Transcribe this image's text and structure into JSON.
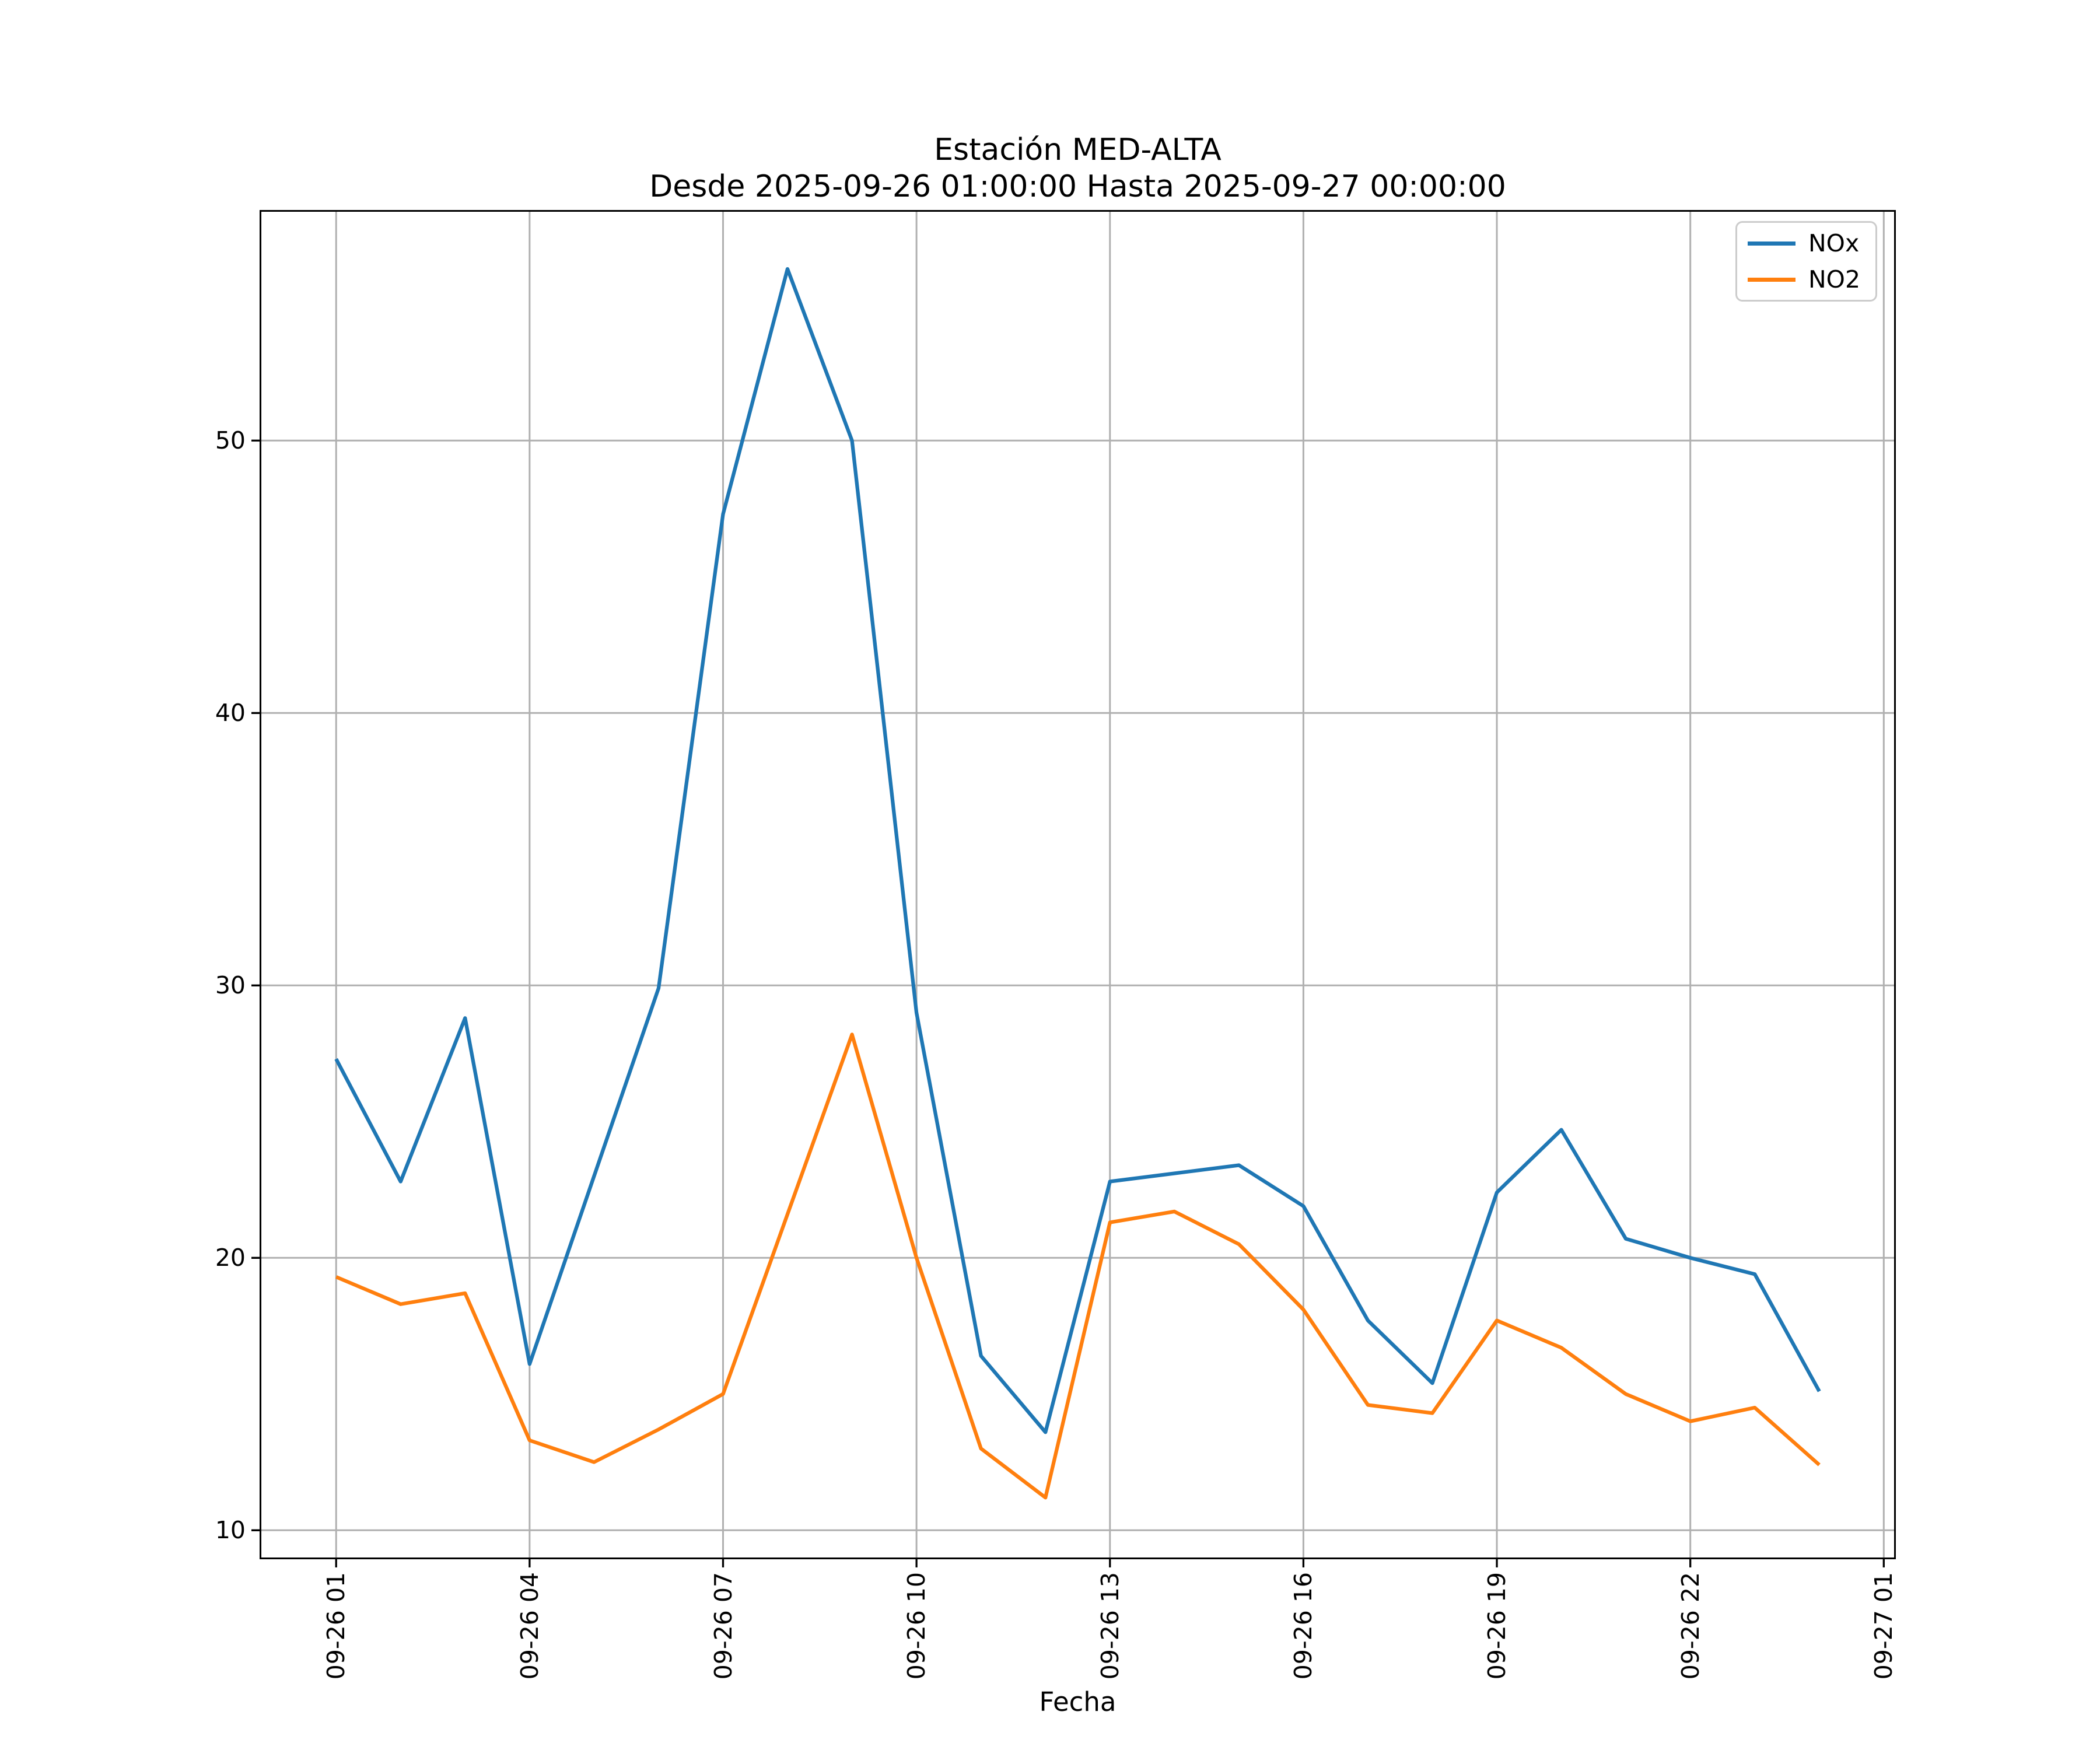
{
  "figure": {
    "title_line1": "Estación MED-ALTA",
    "title_line2": "Desde 2025-09-26 01:00:00 Hasta 2025-09-27 00:00:00",
    "xlabel": "Fecha"
  },
  "colors": {
    "background": "#ffffff",
    "grid": "#b0b0b0",
    "spine": "#000000",
    "tick": "#000000",
    "legend_edge": "#cccccc",
    "nox": "#1f77b4",
    "no2": "#ff7f0e"
  },
  "chart_data": {
    "type": "line",
    "title": "Estación MED-ALTA\nDesde 2025-09-26 01:00:00 Hasta 2025-09-27 00:00:00",
    "xlabel": "Fecha",
    "ylabel": "",
    "grid": true,
    "legend_position": "upper right",
    "x_hours": [
      1,
      2,
      3,
      4,
      5,
      6,
      7,
      8,
      9,
      10,
      11,
      12,
      13,
      14,
      15,
      16,
      17,
      18,
      19,
      20,
      21,
      22,
      23,
      24
    ],
    "x_times": [
      "01:00",
      "02:00",
      "03:00",
      "04:00",
      "05:00",
      "06:00",
      "07:00",
      "08:00",
      "09:00",
      "10:00",
      "11:00",
      "12:00",
      "13:00",
      "14:00",
      "15:00",
      "16:00",
      "17:00",
      "18:00",
      "19:00",
      "20:00",
      "21:00",
      "22:00",
      "23:00",
      "00:00"
    ],
    "x_tick_hours": [
      1,
      4,
      7,
      10,
      13,
      16,
      19,
      22,
      25
    ],
    "x_tick_labels": [
      "09-26 01",
      "09-26 04",
      "09-26 07",
      "09-26 10",
      "09-26 13",
      "09-26 16",
      "09-26 19",
      "09-26 22",
      "09-27 01"
    ],
    "y_ticks": [
      10,
      20,
      30,
      40,
      50
    ],
    "xlim_hours": [
      -0.16,
      25.16
    ],
    "ylim": [
      9.0,
      58.4
    ],
    "series": [
      {
        "name": "NOx",
        "color": "#1f77b4",
        "values": [
          27.3,
          22.8,
          28.8,
          16.1,
          23.0,
          29.9,
          47.3,
          56.3,
          50.0,
          29.0,
          16.4,
          13.6,
          22.8,
          23.1,
          23.4,
          21.9,
          17.7,
          15.4,
          22.4,
          24.7,
          20.7,
          20.0,
          19.4,
          15.1
        ]
      },
      {
        "name": "NO2",
        "color": "#ff7f0e",
        "values": [
          19.3,
          18.3,
          18.7,
          13.3,
          12.5,
          13.7,
          15.0,
          21.6,
          28.2,
          20.0,
          13.0,
          11.2,
          21.3,
          21.7,
          20.5,
          18.1,
          14.6,
          14.3,
          17.7,
          16.7,
          15.0,
          14.0,
          14.5,
          12.4
        ]
      }
    ]
  }
}
